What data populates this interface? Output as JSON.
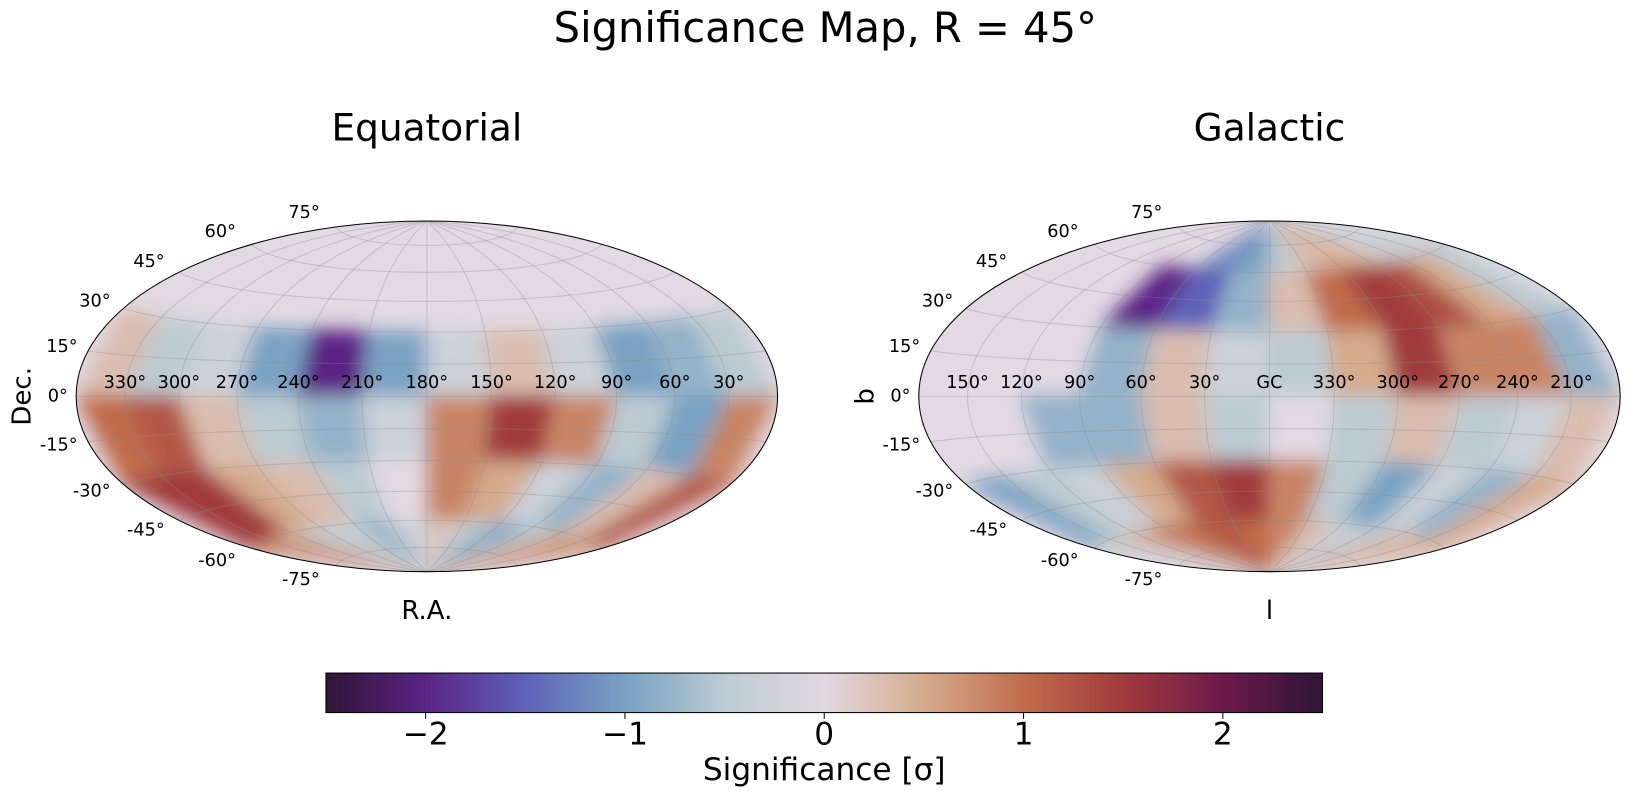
{
  "title": "Significance Map, R = 45°",
  "chart_data": [
    {
      "type": "heatmap",
      "projection": "hammer",
      "title": "Equatorial",
      "xlabel": "R.A.",
      "ylabel": "Dec.",
      "grid": true,
      "xticks": [
        {
          "value": 330,
          "label": "330°"
        },
        {
          "value": 300,
          "label": "300°"
        },
        {
          "value": 270,
          "label": "270°"
        },
        {
          "value": 240,
          "label": "240°"
        },
        {
          "value": 210,
          "label": "210°"
        },
        {
          "value": 180,
          "label": "180°"
        },
        {
          "value": 150,
          "label": "150°"
        },
        {
          "value": 120,
          "label": "120°"
        },
        {
          "value": 90,
          "label": "90°"
        },
        {
          "value": 60,
          "label": "60°"
        },
        {
          "value": 30,
          "label": "30°"
        }
      ],
      "yticks": [
        {
          "value": 75,
          "label": "75°"
        },
        {
          "value": 60,
          "label": "60°"
        },
        {
          "value": 45,
          "label": "45°"
        },
        {
          "value": 30,
          "label": "30°"
        },
        {
          "value": 15,
          "label": "15°"
        },
        {
          "value": 0,
          "label": "0°"
        },
        {
          "value": -15,
          "label": "-15°"
        },
        {
          "value": -30,
          "label": "-30°"
        },
        {
          "value": -45,
          "label": "-45°"
        },
        {
          "value": -60,
          "label": "-60°"
        },
        {
          "value": -75,
          "label": "-75°"
        }
      ],
      "x": [
        345,
        315,
        285,
        255,
        225,
        195,
        165,
        135,
        105,
        75,
        45,
        15
      ],
      "y": [
        75,
        45,
        15,
        -15,
        -45,
        -75
      ],
      "values": [
        [
          null,
          null,
          null,
          null,
          null,
          null,
          null,
          null,
          null,
          null,
          null,
          null
        ],
        [
          null,
          null,
          null,
          null,
          null,
          null,
          null,
          null,
          null,
          null,
          null,
          null
        ],
        [
          0.3,
          -0.5,
          -0.3,
          -1.0,
          -2.0,
          -1.0,
          -0.3,
          0.3,
          -0.3,
          -1.0,
          -0.8,
          -0.5
        ],
        [
          1.0,
          1.2,
          0.3,
          -0.5,
          -0.8,
          -0.3,
          0.8,
          1.5,
          0.8,
          -0.5,
          -1.0,
          0.8
        ],
        [
          1.5,
          1.5,
          0.5,
          0.3,
          -0.5,
          0.0,
          0.8,
          0.5,
          -0.3,
          -0.8,
          0.3,
          1.2
        ],
        [
          1.0,
          0.5,
          -0.5,
          -0.3,
          -0.8,
          -0.3,
          0.2,
          -0.5,
          -1.0,
          -0.5,
          0.5,
          0.8
        ]
      ]
    },
    {
      "type": "heatmap",
      "projection": "hammer",
      "title": "Galactic",
      "xlabel": "l",
      "ylabel": "b",
      "grid": true,
      "xticks": [
        {
          "value": 150,
          "label": "150°"
        },
        {
          "value": 120,
          "label": "120°"
        },
        {
          "value": 90,
          "label": "90°"
        },
        {
          "value": 60,
          "label": "60°"
        },
        {
          "value": 30,
          "label": "30°"
        },
        {
          "value": 0,
          "label": "GC"
        },
        {
          "value": 330,
          "label": "330°"
        },
        {
          "value": 300,
          "label": "300°"
        },
        {
          "value": 270,
          "label": "270°"
        },
        {
          "value": 240,
          "label": "240°"
        },
        {
          "value": 210,
          "label": "210°"
        }
      ],
      "yticks": [
        {
          "value": 75,
          "label": "75°"
        },
        {
          "value": 60,
          "label": "60°"
        },
        {
          "value": 45,
          "label": "45°"
        },
        {
          "value": 30,
          "label": "30°"
        },
        {
          "value": 15,
          "label": "15°"
        },
        {
          "value": 0,
          "label": "0°"
        },
        {
          "value": -15,
          "label": "-15°"
        },
        {
          "value": -30,
          "label": "-30°"
        },
        {
          "value": -45,
          "label": "-45°"
        },
        {
          "value": -60,
          "label": "-60°"
        },
        {
          "value": -75,
          "label": "-75°"
        }
      ],
      "x": [
        165,
        135,
        105,
        75,
        45,
        15,
        345,
        315,
        285,
        255,
        225,
        195
      ],
      "y": [
        75,
        45,
        15,
        -15,
        -45,
        -75
      ],
      "values": [
        [
          null,
          null,
          null,
          null,
          -1.2,
          -1.0,
          -0.5,
          0.3,
          0.5,
          0.3,
          -0.3,
          -0.5
        ],
        [
          null,
          null,
          null,
          -2.0,
          -1.5,
          -0.8,
          0.3,
          1.0,
          1.5,
          1.3,
          0.5,
          -0.5
        ],
        [
          null,
          null,
          null,
          -0.8,
          0.3,
          -0.3,
          -0.5,
          0.5,
          1.5,
          0.8,
          0.8,
          -0.8
        ],
        [
          null,
          null,
          -0.8,
          -0.8,
          0.3,
          -0.5,
          0.0,
          -0.5,
          0.3,
          -0.5,
          -0.3,
          0.3
        ],
        [
          -1.0,
          -0.5,
          -0.3,
          0.5,
          1.2,
          1.5,
          0.8,
          -0.5,
          -1.0,
          -0.3,
          -0.8,
          0.5
        ],
        [
          -0.5,
          0.3,
          0.8,
          1.0,
          1.2,
          1.0,
          0.8,
          0.3,
          -0.3,
          -0.5,
          0.3,
          0.5
        ]
      ]
    }
  ],
  "colorbar": {
    "label": "Significance [σ]",
    "cmap": "twilight_shifted",
    "lim": [
      -2.5,
      2.5
    ],
    "ticks": [
      {
        "value": -2,
        "label": "−2"
      },
      {
        "value": -1,
        "label": "−1"
      },
      0,
      1,
      2
    ]
  }
}
